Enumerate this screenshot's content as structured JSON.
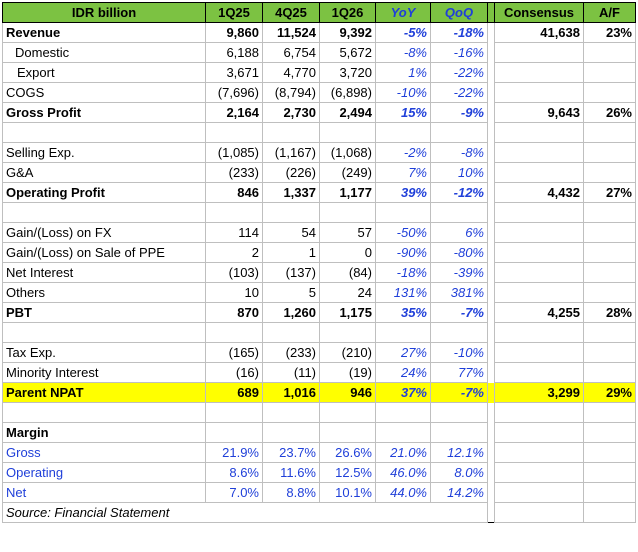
{
  "header": {
    "label": "IDR billion",
    "cols": [
      "1Q25",
      "4Q25",
      "1Q26",
      "YoY",
      "QoQ"
    ],
    "consensus": "Consensus",
    "af": "A/F"
  },
  "rows": [
    {
      "type": "bold",
      "label": "Revenue",
      "v": [
        "9,860",
        "11,524",
        "9,392",
        "-5%",
        "-18%"
      ],
      "cons": "41,638",
      "af": "23%"
    },
    {
      "type": "indent",
      "label": "Domestic",
      "v": [
        "6,188",
        "6,754",
        "5,672",
        "-8%",
        "-16%"
      ],
      "cons": "",
      "af": ""
    },
    {
      "type": "indent2",
      "label": "Export",
      "v": [
        "3,671",
        "4,770",
        "3,720",
        "1%",
        "-22%"
      ],
      "cons": "",
      "af": ""
    },
    {
      "type": "normal",
      "label": "COGS",
      "v": [
        "(7,696)",
        "(8,794)",
        "(6,898)",
        "-10%",
        "-22%"
      ],
      "cons": "",
      "af": ""
    },
    {
      "type": "bold",
      "label": "Gross Profit",
      "v": [
        "2,164",
        "2,730",
        "2,494",
        "15%",
        "-9%"
      ],
      "cons": "9,643",
      "af": "26%"
    },
    {
      "type": "blank",
      "label": "",
      "v": [
        "",
        "",
        "",
        "",
        ""
      ],
      "cons": "",
      "af": ""
    },
    {
      "type": "normal",
      "label": "Selling Exp.",
      "v": [
        "(1,085)",
        "(1,167)",
        "(1,068)",
        "-2%",
        "-8%"
      ],
      "cons": "",
      "af": ""
    },
    {
      "type": "normal",
      "label": "G&A",
      "v": [
        "(233)",
        "(226)",
        "(249)",
        "7%",
        "10%"
      ],
      "cons": "",
      "af": ""
    },
    {
      "type": "bold",
      "label": "Operating Profit",
      "v": [
        "846",
        "1,337",
        "1,177",
        "39%",
        "-12%"
      ],
      "cons": "4,432",
      "af": "27%"
    },
    {
      "type": "blank",
      "label": "",
      "v": [
        "",
        "",
        "",
        "",
        ""
      ],
      "cons": "",
      "af": ""
    },
    {
      "type": "normal",
      "label": "Gain/(Loss) on FX",
      "v": [
        "114",
        "54",
        "57",
        "-50%",
        "6%"
      ],
      "cons": "",
      "af": ""
    },
    {
      "type": "normal",
      "label": "Gain/(Loss) on Sale of PPE",
      "v": [
        "2",
        "1",
        "0",
        "-90%",
        "-80%"
      ],
      "cons": "",
      "af": ""
    },
    {
      "type": "normal",
      "label": "Net Interest",
      "v": [
        "(103)",
        "(137)",
        "(84)",
        "-18%",
        "-39%"
      ],
      "cons": "",
      "af": ""
    },
    {
      "type": "normal",
      "label": "Others",
      "v": [
        "10",
        "5",
        "24",
        "131%",
        "381%"
      ],
      "cons": "",
      "af": ""
    },
    {
      "type": "bold",
      "label": "PBT",
      "v": [
        "870",
        "1,260",
        "1,175",
        "35%",
        "-7%"
      ],
      "cons": "4,255",
      "af": "28%"
    },
    {
      "type": "blank",
      "label": "",
      "v": [
        "",
        "",
        "",
        "",
        ""
      ],
      "cons": "",
      "af": ""
    },
    {
      "type": "normal",
      "label": "Tax Exp.",
      "v": [
        "(165)",
        "(233)",
        "(210)",
        "27%",
        "-10%"
      ],
      "cons": "",
      "af": ""
    },
    {
      "type": "normal",
      "label": "Minority Interest",
      "v": [
        "(16)",
        "(11)",
        "(19)",
        "24%",
        "77%"
      ],
      "cons": "",
      "af": ""
    },
    {
      "type": "hl",
      "label": "Parent NPAT",
      "v": [
        "689",
        "1,016",
        "946",
        "37%",
        "-7%"
      ],
      "cons": "3,299",
      "af": "29%"
    },
    {
      "type": "blank",
      "label": "",
      "v": [
        "",
        "",
        "",
        "",
        ""
      ],
      "cons": "",
      "af": ""
    },
    {
      "type": "bold",
      "label": "Margin",
      "v": [
        "",
        "",
        "",
        "",
        ""
      ],
      "cons": "",
      "af": ""
    },
    {
      "type": "margin",
      "label": "Gross",
      "v": [
        "21.9%",
        "23.7%",
        "26.6%",
        "21.0%",
        "12.1%"
      ],
      "cons": "",
      "af": ""
    },
    {
      "type": "margin",
      "label": "Operating",
      "v": [
        "8.6%",
        "11.6%",
        "12.5%",
        "46.0%",
        "8.0%"
      ],
      "cons": "",
      "af": ""
    },
    {
      "type": "margin",
      "label": "Net",
      "v": [
        "7.0%",
        "8.8%",
        "10.1%",
        "44.0%",
        "14.2%"
      ],
      "cons": "",
      "af": ""
    }
  ],
  "source": "Source: Financial Statement",
  "colors": {
    "header_green": "#7cc242",
    "highlight": "#ffff00",
    "blue": "#1f3fd9"
  }
}
